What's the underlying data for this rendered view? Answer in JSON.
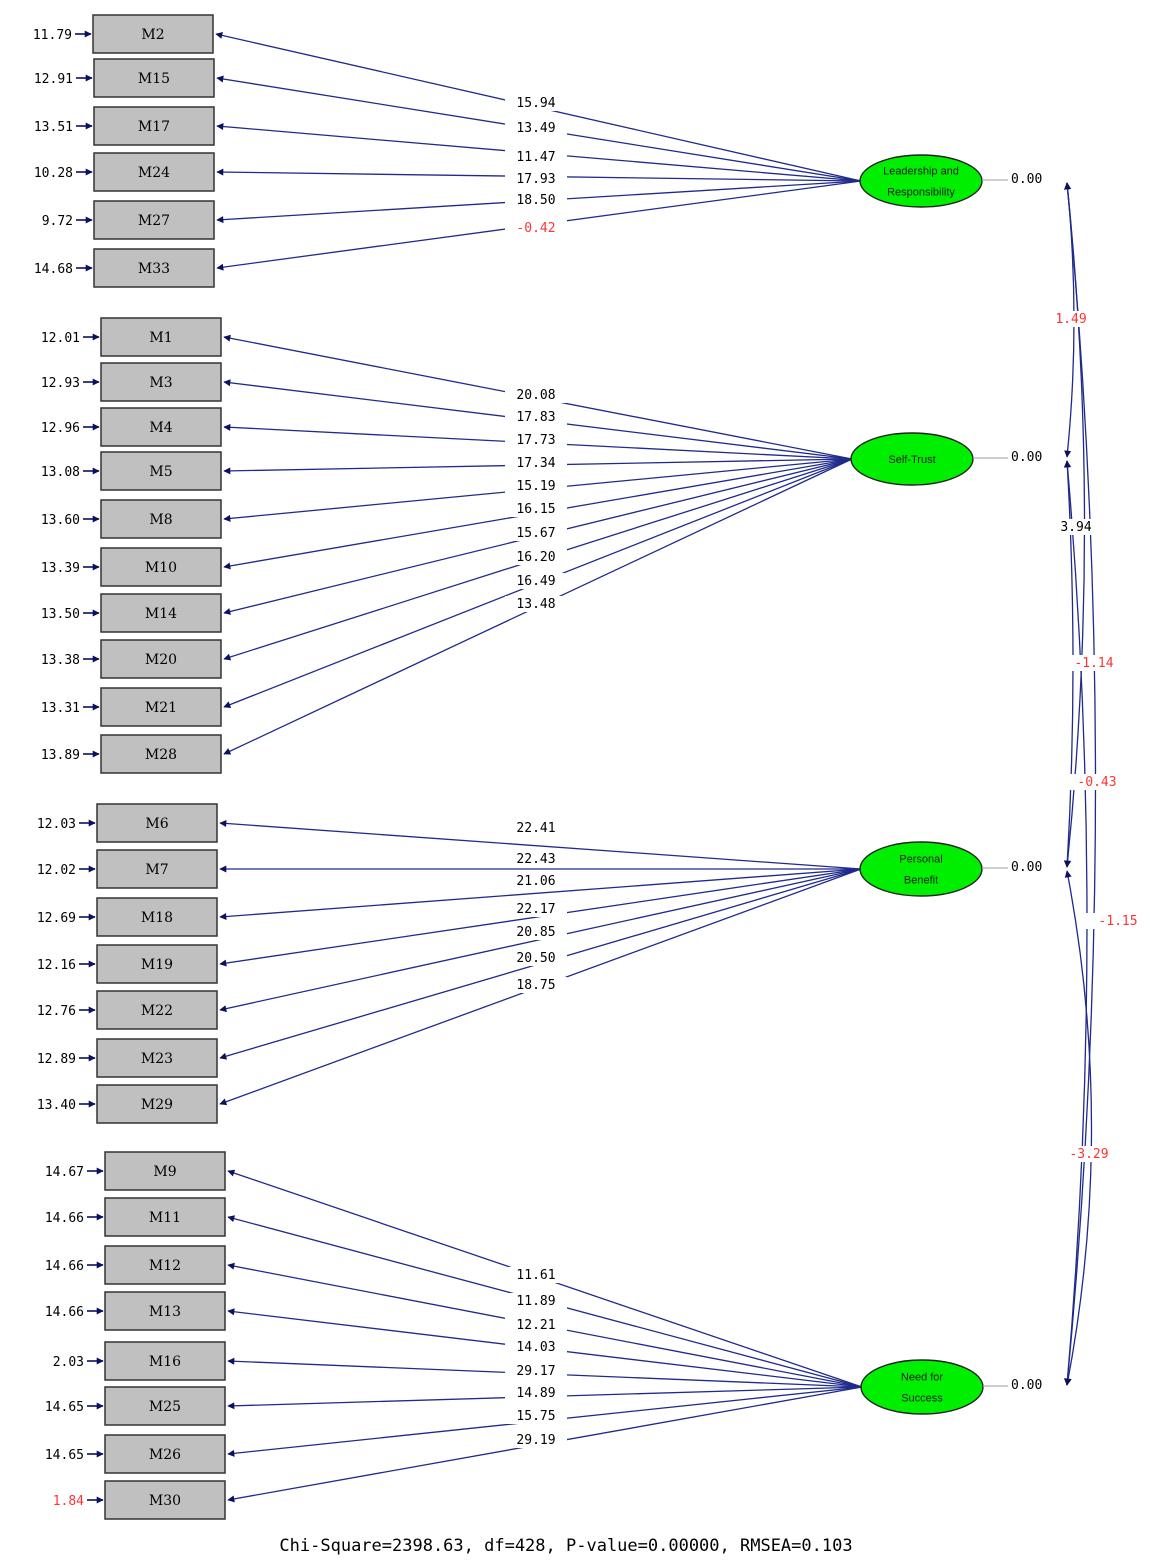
{
  "colors": {
    "path": "#1f2a8c",
    "arrow": "#0a1260",
    "latent_fill": "#00ee00",
    "negative": "#ff3333",
    "text": "#000000"
  },
  "latents": [
    {
      "id": "leadership",
      "lines": [
        "Leadership and",
        "Responsibility"
      ],
      "variance": "0.00"
    },
    {
      "id": "self-trust",
      "lines": [
        "Self-Trust"
      ],
      "variance": "0.00"
    },
    {
      "id": "personal-benefit",
      "lines": [
        "Personal",
        "Benefit"
      ],
      "variance": "0.00"
    },
    {
      "id": "need-success",
      "lines": [
        "Need for",
        "Success"
      ],
      "variance": "0.00"
    }
  ],
  "indicators": [
    {
      "label": "M2",
      "error": "11.79",
      "loading": "15.94",
      "latent": 0
    },
    {
      "label": "M15",
      "error": "12.91",
      "loading": "13.49",
      "latent": 0
    },
    {
      "label": "M17",
      "error": "13.51",
      "loading": "11.47",
      "latent": 0
    },
    {
      "label": "M24",
      "error": "10.28",
      "loading": "17.93",
      "latent": 0
    },
    {
      "label": "M27",
      "error": "9.72",
      "loading": "18.50",
      "latent": 0
    },
    {
      "label": "M33",
      "error": "14.68",
      "loading": "-0.42",
      "latent": 0
    },
    {
      "label": "M1",
      "error": "12.01",
      "loading": "20.08",
      "latent": 1
    },
    {
      "label": "M3",
      "error": "12.93",
      "loading": "17.83",
      "latent": 1
    },
    {
      "label": "M4",
      "error": "12.96",
      "loading": "17.73",
      "latent": 1
    },
    {
      "label": "M5",
      "error": "13.08",
      "loading": "17.34",
      "latent": 1
    },
    {
      "label": "M8",
      "error": "13.60",
      "loading": "15.19",
      "latent": 1
    },
    {
      "label": "M10",
      "error": "13.39",
      "loading": "16.15",
      "latent": 1
    },
    {
      "label": "M14",
      "error": "13.50",
      "loading": "15.67",
      "latent": 1
    },
    {
      "label": "M20",
      "error": "13.38",
      "loading": "16.20",
      "latent": 1
    },
    {
      "label": "M21",
      "error": "13.31",
      "loading": "16.49",
      "latent": 1
    },
    {
      "label": "M28",
      "error": "13.89",
      "loading": "13.48",
      "latent": 1
    },
    {
      "label": "M6",
      "error": "12.03",
      "loading": "22.41",
      "latent": 2
    },
    {
      "label": "M7",
      "error": "12.02",
      "loading": "22.43",
      "latent": 2
    },
    {
      "label": "M18",
      "error": "12.69",
      "loading": "21.06",
      "latent": 2
    },
    {
      "label": "M19",
      "error": "12.16",
      "loading": "22.17",
      "latent": 2
    },
    {
      "label": "M22",
      "error": "12.76",
      "loading": "20.85",
      "latent": 2
    },
    {
      "label": "M23",
      "error": "12.89",
      "loading": "20.50",
      "latent": 2
    },
    {
      "label": "M29",
      "error": "13.40",
      "loading": "18.75",
      "latent": 2
    },
    {
      "label": "M9",
      "error": "14.67",
      "loading": "11.61",
      "latent": 3
    },
    {
      "label": "M11",
      "error": "14.66",
      "loading": "11.89",
      "latent": 3
    },
    {
      "label": "M12",
      "error": "14.66",
      "loading": "12.21",
      "latent": 3
    },
    {
      "label": "M13",
      "error": "14.66",
      "loading": "14.03",
      "latent": 3
    },
    {
      "label": "M16",
      "error": "2.03",
      "loading": "29.17",
      "latent": 3
    },
    {
      "label": "M25",
      "error": "14.65",
      "loading": "14.89",
      "latent": 3
    },
    {
      "label": "M26",
      "error": "14.65",
      "loading": "15.75",
      "latent": 3
    },
    {
      "label": "M30",
      "error": "1.84",
      "loading": "29.19",
      "latent": 3
    }
  ],
  "covariances": [
    {
      "from": 0,
      "to": 1,
      "value": "1.49"
    },
    {
      "from": 1,
      "to": 2,
      "value": "3.94"
    },
    {
      "from": 0,
      "to": 2,
      "value": "-1.14"
    },
    {
      "from": 1,
      "to": 3,
      "value": "-0.43"
    },
    {
      "from": 0,
      "to": 3,
      "value": "-1.15"
    },
    {
      "from": 2,
      "to": 3,
      "value": "-3.29"
    }
  ],
  "fit_statistics": "Chi-Square=2398.63, df=428, P-value=0.00000, RMSEA=0.103"
}
